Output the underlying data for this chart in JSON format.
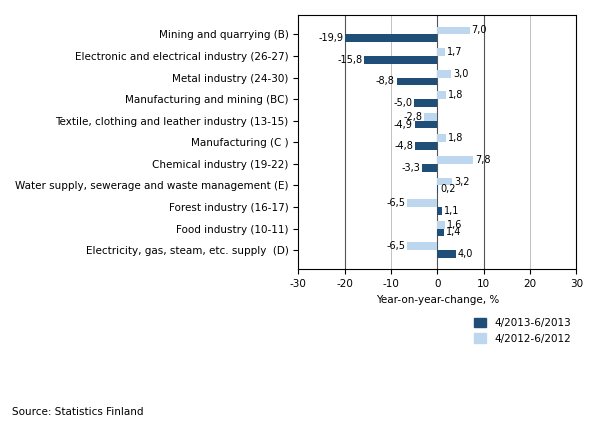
{
  "categories": [
    "Mining and quarrying (B)",
    "Electronic and electrical industry (26-27)",
    "Metal industry (24-30)",
    "Manufacturing and mining (BC)",
    "Textile, clothing and leather industry (13-15)",
    "Manufacturing (C )",
    "Chemical industry (19-22)",
    "Water supply, sewerage and waste management (E)",
    "Forest industry (16-17)",
    "Food industry (10-11)",
    "Electricity, gas, steam, etc. supply  (D)"
  ],
  "values_2013": [
    -19.9,
    -15.8,
    -8.8,
    -5.0,
    -4.9,
    -4.8,
    -3.3,
    0.2,
    1.1,
    1.4,
    4.0
  ],
  "values_2012": [
    7.0,
    1.7,
    3.0,
    1.8,
    -2.8,
    1.8,
    7.8,
    3.2,
    -6.5,
    1.6,
    -6.5
  ],
  "labels_2013": [
    "-19,9",
    "-15,8",
    "-8,8",
    "-5,0",
    "-4,9",
    "-4,8",
    "-3,3",
    "0,2",
    "1,1",
    "1,4",
    "4,0"
  ],
  "labels_2012": [
    "7,0",
    "1,7",
    "3,0",
    "1,8",
    "-2,8",
    "1,8",
    "7,8",
    "3,2",
    "-6,5",
    "1,6",
    "-6,5"
  ],
  "color_2013": "#1f4e79",
  "color_2012": "#bdd7ee",
  "xlabel": "Year-on-year-change, %",
  "xlim": [
    -30,
    30
  ],
  "xticks": [
    -30,
    -20,
    -10,
    0,
    10,
    20,
    30
  ],
  "legend_2013": "4/2013-6/2013",
  "legend_2012": "4/2012-6/2012",
  "source_text": "Source: Statistics Finland",
  "bar_height": 0.36,
  "tick_fontsize": 7.5,
  "label_fontsize": 7.0
}
